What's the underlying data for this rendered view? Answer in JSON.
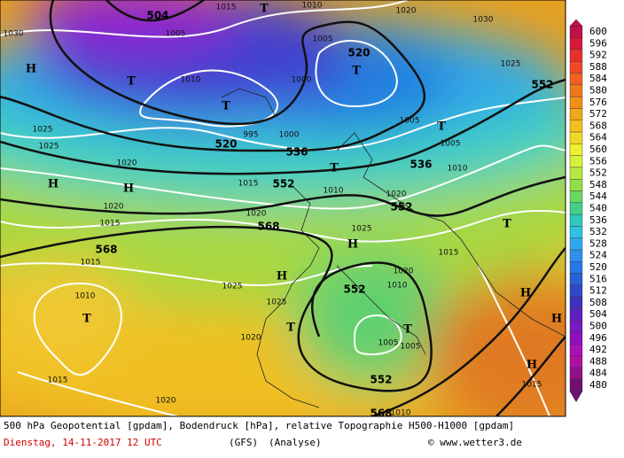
{
  "colorbar": {
    "labels": [
      "600",
      "596",
      "592",
      "588",
      "584",
      "580",
      "576",
      "572",
      "568",
      "564",
      "560",
      "556",
      "552",
      "548",
      "544",
      "540",
      "536",
      "532",
      "528",
      "524",
      "520",
      "516",
      "512",
      "508",
      "504",
      "500",
      "496",
      "492",
      "488",
      "484",
      "480"
    ]
  },
  "map": {
    "geopotential_labels": [
      "504",
      "520",
      "520",
      "536",
      "536",
      "552",
      "552",
      "552",
      "568",
      "568",
      "552",
      "552",
      "568"
    ],
    "pressure_labels": [
      "1015",
      "1010",
      "1020",
      "1030",
      "1030",
      "1005",
      "1005",
      "1025",
      "1010",
      "1000",
      "1005",
      "1025",
      "1025",
      "995",
      "1000",
      "1005",
      "1020",
      "1015",
      "1010",
      "1020",
      "1010",
      "1020",
      "1020",
      "1025",
      "1015",
      "1015",
      "1015",
      "1020",
      "1010",
      "1025",
      "1010",
      "1025",
      "1020",
      "1005",
      "1005",
      "1015",
      "1020",
      "1015",
      "1010"
    ],
    "highs": [
      "H",
      "H",
      "H",
      "H",
      "H",
      "H",
      "H",
      "H"
    ],
    "lows": [
      "T",
      "T",
      "T",
      "T",
      "T",
      "T",
      "T",
      "T",
      "T",
      "T"
    ]
  },
  "caption": {
    "line1": "500 hPa Geopotential [gpdam], Bodendruck [hPa], relative Topographie H500-H1000 [gpdam]",
    "date": "Dienstag, 14-11-2017  12 UTC",
    "model": "(GFS)",
    "run": "(Analyse)",
    "copyright": "© www.wetter3.de"
  }
}
